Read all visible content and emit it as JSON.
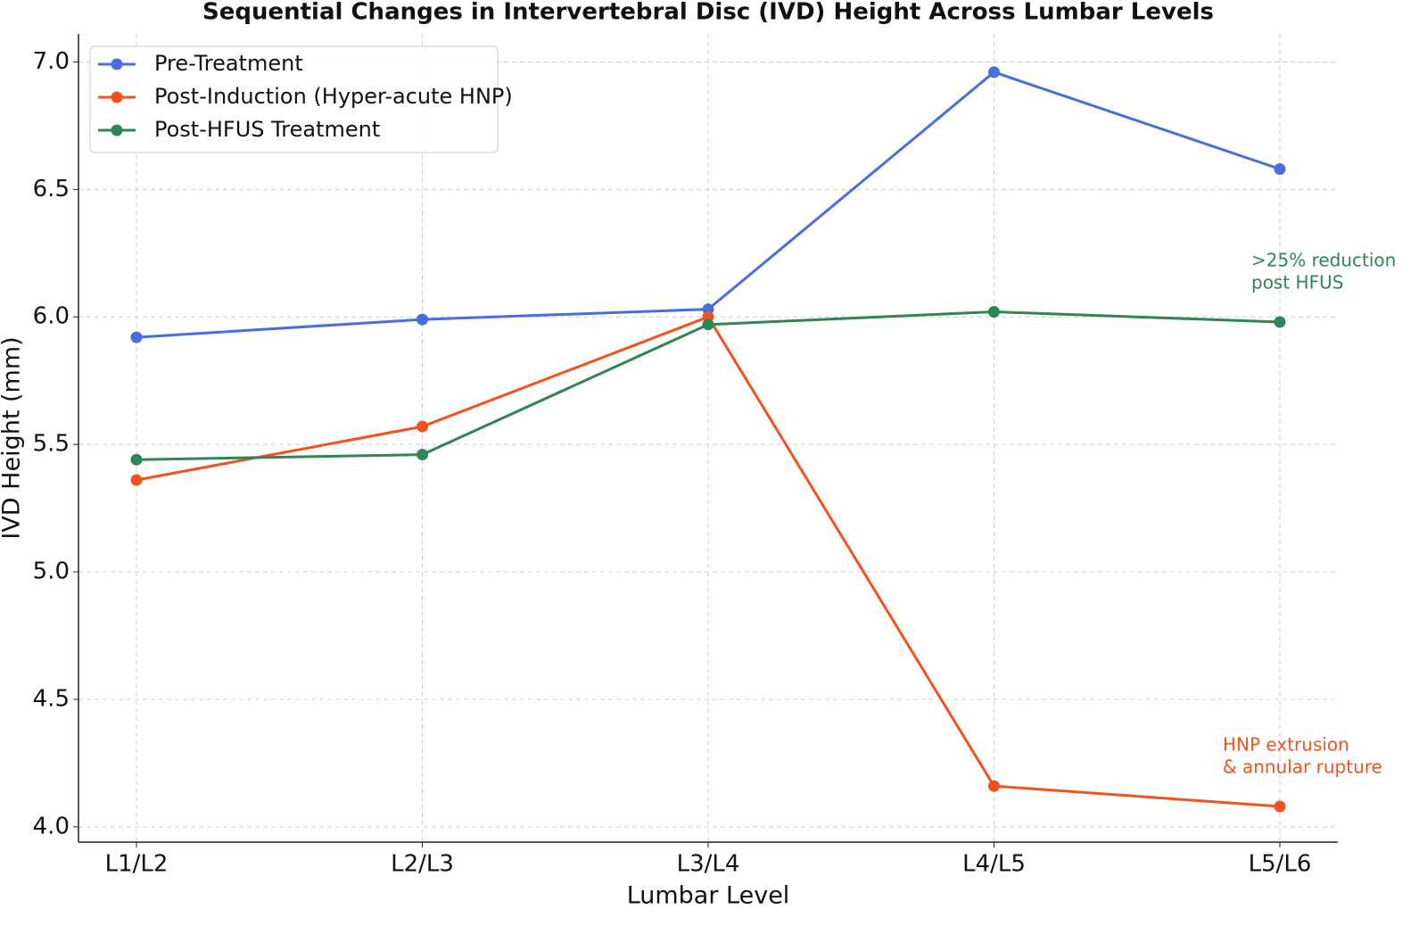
{
  "chart_data": {
    "type": "line",
    "title": "Sequential Changes in Intervertebral Disc (IVD) Height Across Lumbar Levels",
    "x_label": "Lumbar Level",
    "y_label": "IVD Height (mm)",
    "categories": [
      "L1/L2",
      "L2/L3",
      "L3/L4",
      "L4/L5",
      "L5/L6"
    ],
    "series": [
      {
        "name": "Pre-Treatment",
        "color": "#4a6ddd",
        "values": [
          5.92,
          5.99,
          6.03,
          6.96,
          6.58
        ]
      },
      {
        "name": "Post-Induction (Hyper-acute HNP)",
        "color": "#f4511e",
        "values": [
          5.36,
          5.57,
          6.0,
          4.16,
          4.08
        ]
      },
      {
        "name": "Post-HFUS Treatment",
        "color": "#2e8555",
        "values": [
          5.44,
          5.46,
          5.97,
          6.02,
          5.98
        ]
      }
    ],
    "ylim": [
      3.94,
      7.11
    ],
    "yticks": [
      {
        "value": 4,
        "label": "4.0"
      },
      4.5,
      {
        "value": 5,
        "label": "5.0"
      },
      5.5,
      {
        "value": 6,
        "label": "6.0"
      },
      6.5,
      {
        "value": 7,
        "label": "7.0"
      }
    ],
    "grid": true,
    "legend": "upper left",
    "annotations": [
      {
        "lines": [
          ">25% reduction",
          "post HFUS"
        ],
        "color": "#2e8555"
      },
      {
        "lines": [
          "HNP extrusion",
          "& annular rupture"
        ],
        "color": "#f4511e"
      }
    ]
  }
}
